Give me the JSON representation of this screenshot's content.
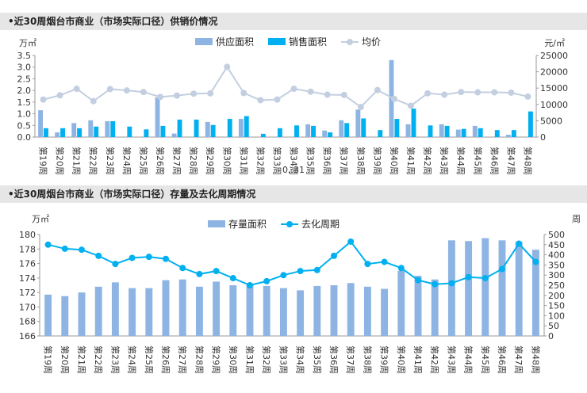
{
  "panel1": {
    "title": "•近30周烟台市商业（市场实际口径）供销价情况",
    "unit_left": "万㎡",
    "unit_right": "元/㎡",
    "legend": [
      "供应面积",
      "销售面积",
      "均价"
    ],
    "stray_text": "0, 31",
    "chart_data": {
      "type": "bar",
      "categories": [
        "第19周",
        "第20周",
        "第21周",
        "第22周",
        "第23周",
        "第24周",
        "第25周",
        "第26周",
        "第27周",
        "第28周",
        "第29周",
        "第30周",
        "第31周",
        "第32周",
        "第33周",
        "第34周",
        "第35周",
        "第36周",
        "第37周",
        "第38周",
        "第39周",
        "第40周",
        "第41周",
        "第42周",
        "第43周",
        "第44周",
        "第45周",
        "第46周",
        "第47周",
        "第48周"
      ],
      "series": [
        {
          "name": "供应面积",
          "kind": "bar",
          "axis": "left",
          "color": "#8eb4e3",
          "values": [
            1.15,
            0.2,
            0.6,
            0.72,
            0.68,
            0,
            0,
            1.7,
            0.15,
            0,
            0.65,
            0,
            0.78,
            0,
            0,
            0,
            0.55,
            0.28,
            0.72,
            1.18,
            0,
            3.3,
            0.55,
            0,
            0.55,
            0.32,
            0.48,
            0,
            0.1,
            0
          ]
        },
        {
          "name": "销售面积",
          "kind": "bar",
          "axis": "left",
          "color": "#00b0f0",
          "values": [
            0.38,
            0.38,
            0.38,
            0.45,
            0.68,
            0.45,
            0.33,
            0.48,
            0.75,
            0.75,
            0.52,
            0.78,
            0.9,
            0.14,
            0.38,
            0.5,
            0.48,
            0.2,
            0.6,
            0.8,
            0.3,
            0.78,
            1.22,
            0.5,
            0.48,
            0.35,
            0.38,
            0.3,
            0.3,
            1.1
          ]
        },
        {
          "name": "均价",
          "kind": "line",
          "axis": "right",
          "color": "#c3cfe0",
          "values": [
            11500,
            12800,
            14800,
            11000,
            14700,
            14300,
            13800,
            12300,
            12700,
            13300,
            13400,
            21500,
            13500,
            11300,
            11500,
            14800,
            13900,
            13000,
            12900,
            9200,
            14400,
            11700,
            9600,
            13400,
            13000,
            13800,
            13700,
            13700,
            13600,
            12400
          ]
        }
      ],
      "ylim_left": [
        0,
        3.5
      ],
      "yticks_left": [
        "0.0",
        "0.5",
        "1.0",
        "1.5",
        "2.0",
        "2.5",
        "3.0",
        "3.5"
      ],
      "ylim_right": [
        0,
        25000
      ],
      "yticks_right": [
        "0",
        "5000",
        "10000",
        "15000",
        "20000",
        "25000"
      ]
    }
  },
  "panel2": {
    "title": "•近30周烟台市商业（市场实际口径）存量及去化周期情况",
    "unit_left": "万㎡",
    "unit_right": "周",
    "legend": [
      "存量面积",
      "去化周期"
    ],
    "chart_data": {
      "type": "bar",
      "categories": [
        "第19周",
        "第20周",
        "第21周",
        "第22周",
        "第23周",
        "第24周",
        "第25周",
        "第26周",
        "第27周",
        "第28周",
        "第29周",
        "第30周",
        "第31周",
        "第32周",
        "第33周",
        "第34周",
        "第35周",
        "第36周",
        "第37周",
        "第38周",
        "第39周",
        "第40周",
        "第41周",
        "第42周",
        "第43周",
        "第44周",
        "第45周",
        "第46周",
        "第47周",
        "第48周"
      ],
      "series": [
        {
          "name": "存量面积",
          "kind": "bar",
          "axis": "left",
          "color": "#8eb4e3",
          "values": [
            171.7,
            171.5,
            172,
            172.8,
            173.4,
            172.6,
            172.6,
            173.7,
            173.8,
            172.8,
            173.5,
            173,
            173,
            172.9,
            172.6,
            172.3,
            172.9,
            173,
            173.3,
            172.8,
            172.5,
            175,
            174.3,
            173.8,
            179.2,
            179.1,
            179.5,
            179.2,
            179,
            177.9
          ]
        },
        {
          "name": "去化周期",
          "kind": "line",
          "axis": "right",
          "color": "#00b0f0",
          "values": [
            450,
            430,
            425,
            395,
            355,
            385,
            390,
            380,
            335,
            305,
            320,
            285,
            250,
            270,
            300,
            320,
            325,
            395,
            465,
            355,
            365,
            335,
            275,
            255,
            260,
            290,
            285,
            330,
            455,
            365
          ]
        }
      ],
      "ylim_left": [
        166,
        180
      ],
      "yticks_left": [
        "166",
        "168",
        "170",
        "172",
        "174",
        "176",
        "178",
        "180"
      ],
      "ylim_right": [
        0,
        500
      ],
      "yticks_right": [
        "0",
        "50",
        "100",
        "150",
        "200",
        "250",
        "300",
        "350",
        "400",
        "450",
        "500"
      ]
    }
  }
}
